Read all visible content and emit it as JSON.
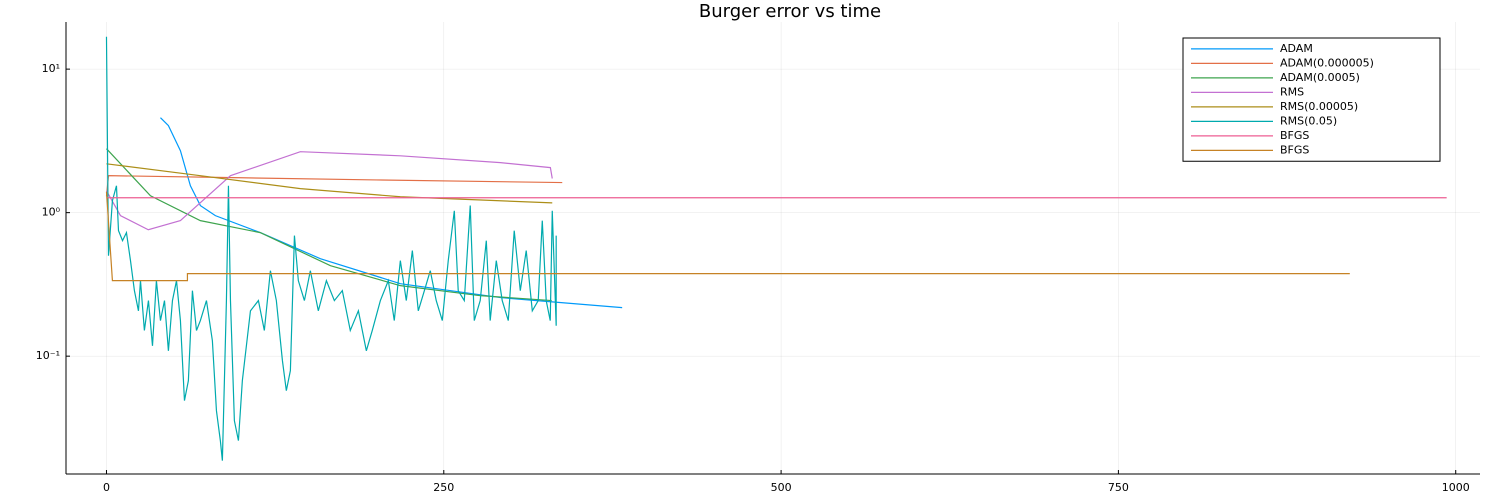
{
  "chart_data": {
    "type": "line",
    "title": "Burger error vs time",
    "log_y": true,
    "grid": true,
    "legend": "top-right",
    "xlim": [
      -30,
      1018
    ],
    "ylim": [
      0.0151,
      21.3
    ],
    "xticks": [
      0,
      250,
      500,
      750,
      1000
    ],
    "yticks": [
      {
        "value": 10,
        "label": "10¹"
      },
      {
        "value": 1,
        "label": "10⁰"
      },
      {
        "value": 0.1,
        "label": "10⁻¹"
      }
    ],
    "series": [
      {
        "name": "ADAM",
        "color": "#009AFA",
        "x": [
          40,
          45.9,
          54.8,
          62.2,
          69.6,
          80.7,
          114,
          158.5,
          217.8,
          291.9,
          382.2
        ],
        "values": [
          4.59,
          4.04,
          2.7,
          1.54,
          1.12,
          0.953,
          0.726,
          0.478,
          0.32,
          0.256,
          0.218
        ]
      },
      {
        "name": "ADAM(0.000005)",
        "color": "#E36F47",
        "x": [
          0,
          1.5,
          100,
          200,
          337.8
        ],
        "values": [
          1.3,
          1.81,
          1.75,
          1.69,
          1.62
        ]
      },
      {
        "name": "ADAM(0.0005)",
        "color": "#3EA44E",
        "x": [
          0,
          32.6,
          69.6,
          114,
          166,
          217.8,
          277,
          330
        ],
        "values": [
          2.79,
          1.31,
          0.88,
          0.726,
          0.427,
          0.31,
          0.264,
          0.244
        ]
      },
      {
        "name": "RMS",
        "color": "#C371D2",
        "x": [
          0,
          10.4,
          31,
          54.8,
          91.9,
          143.7,
          217.8,
          292,
          329,
          330.4
        ],
        "values": [
          1.42,
          0.953,
          0.76,
          0.88,
          1.81,
          2.66,
          2.49,
          2.23,
          2.06,
          1.73
        ]
      },
      {
        "name": "RMS(0.00005)",
        "color": "#AC8E18",
        "x": [
          0,
          69.6,
          143.7,
          217.8,
          330.4
        ],
        "values": [
          2.19,
          1.81,
          1.47,
          1.29,
          1.17
        ]
      },
      {
        "name": "RMS(0.05)",
        "color": "#00AAAE",
        "x": [
          0,
          0.7,
          1.5,
          4.4,
          7.4,
          8.9,
          11.9,
          14.8,
          17.8,
          20.7,
          23.7,
          25.2,
          28.1,
          31.1,
          34.1,
          37,
          40,
          43,
          45.9,
          48.9,
          51.9,
          54.8,
          57.8,
          60.7,
          63.7,
          66.7,
          69.6,
          74.1,
          78.5,
          81.5,
          84.4,
          85.9,
          88.9,
          90.4,
          91.9,
          94.8,
          97.8,
          100.7,
          106.7,
          112.6,
          117,
          121.5,
          125.9,
          130.4,
          133.3,
          136.3,
          139.3,
          142.2,
          146.7,
          151.1,
          157,
          163,
          168.9,
          174.8,
          180.7,
          186.7,
          192.6,
          197,
          203,
          208.9,
          213.3,
          217.8,
          222.2,
          226.7,
          231.1,
          235.6,
          240,
          244.4,
          248.9,
          253.3,
          257.8,
          260.7,
          265.2,
          269.6,
          272.6,
          277,
          281.5,
          284.4,
          288.9,
          293.3,
          297.8,
          302.2,
          306.7,
          311.1,
          315.6,
          320,
          323,
          325.9,
          328.9,
          330.4,
          333.3,
          333.3
        ],
        "values": [
          16.8,
          3.18,
          0.501,
          1.21,
          1.54,
          0.749,
          0.638,
          0.726,
          0.463,
          0.286,
          0.207,
          0.336,
          0.151,
          0.244,
          0.118,
          0.336,
          0.177,
          0.244,
          0.109,
          0.244,
          0.336,
          0.177,
          0.049,
          0.0675,
          0.286,
          0.151,
          0.177,
          0.244,
          0.128,
          0.0417,
          0.0258,
          0.0187,
          0.244,
          1.54,
          0.244,
          0.0355,
          0.0258,
          0.0675,
          0.207,
          0.244,
          0.151,
          0.394,
          0.244,
          0.0931,
          0.0575,
          0.0793,
          0.692,
          0.336,
          0.244,
          0.394,
          0.207,
          0.336,
          0.244,
          0.286,
          0.151,
          0.207,
          0.109,
          0.151,
          0.244,
          0.336,
          0.177,
          0.463,
          0.244,
          0.544,
          0.207,
          0.286,
          0.394,
          0.244,
          0.177,
          0.463,
          1.03,
          0.286,
          0.244,
          1.12,
          0.177,
          0.244,
          0.638,
          0.177,
          0.463,
          0.244,
          0.177,
          0.749,
          0.286,
          0.544,
          0.207,
          0.244,
          0.88,
          0.244,
          0.177,
          1.03,
          0.163,
          0.692
        ]
      },
      {
        "name": "BFGS",
        "color": "#ED5E93",
        "x": [
          0,
          993.3
        ],
        "values": [
          1.27,
          1.27
        ]
      },
      {
        "name": "BFGS",
        "color": "#C68225",
        "x": [
          0,
          4.4,
          60,
          60,
          921.5
        ],
        "values": [
          1.4,
          0.336,
          0.336,
          0.376,
          0.376
        ]
      }
    ]
  }
}
